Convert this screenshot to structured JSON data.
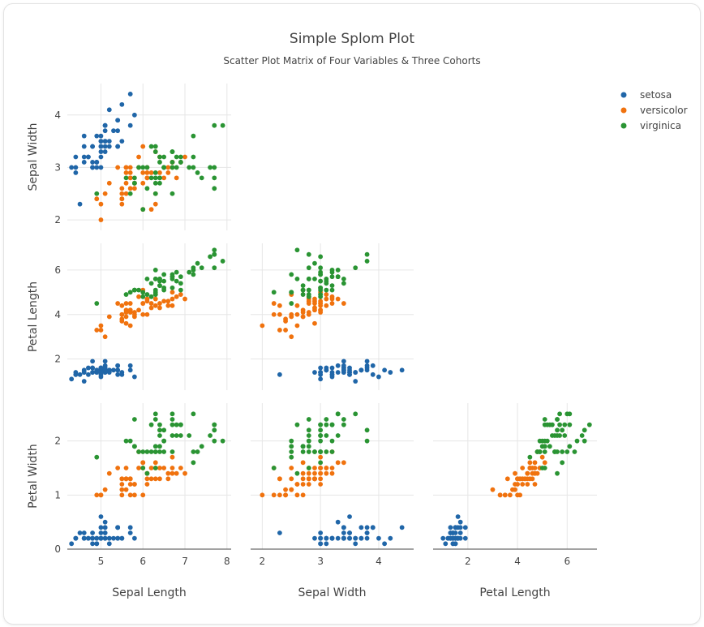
{
  "chart_data": {
    "type": "scatter",
    "title": "Simple Splom Plot",
    "subtitle": "Scatter Plot Matrix of Four Variables & Three Cohorts",
    "dimensions": [
      "Sepal Length",
      "Sepal Width",
      "Petal Length",
      "Petal Width"
    ],
    "row_dimensions": [
      "Sepal Width",
      "Petal Length",
      "Petal Width"
    ],
    "col_dimensions": [
      "Sepal Length",
      "Sepal Width",
      "Petal Length"
    ],
    "axes": {
      "Sepal Length": {
        "range": [
          4.2,
          8.1
        ],
        "ticks": [
          5,
          6,
          7,
          8
        ]
      },
      "Sepal Width": {
        "range": [
          1.8,
          4.6
        ],
        "ticks": [
          2,
          3,
          4
        ]
      },
      "Petal Length": {
        "range": [
          0.6,
          7.2
        ],
        "ticks": [
          2,
          4,
          6
        ]
      },
      "Petal Width": {
        "range": [
          0,
          2.7
        ],
        "ticks": [
          0,
          1,
          2
        ]
      }
    },
    "legend": {
      "position": "top-right"
    },
    "grid": true,
    "series": [
      {
        "name": "setosa",
        "color": "#2066a8",
        "points": [
          [
            5.1,
            3.5,
            1.4,
            0.2
          ],
          [
            4.9,
            3.0,
            1.4,
            0.2
          ],
          [
            4.7,
            3.2,
            1.3,
            0.2
          ],
          [
            4.6,
            3.1,
            1.5,
            0.2
          ],
          [
            5.0,
            3.6,
            1.4,
            0.2
          ],
          [
            5.4,
            3.9,
            1.7,
            0.4
          ],
          [
            4.6,
            3.4,
            1.4,
            0.3
          ],
          [
            5.0,
            3.4,
            1.5,
            0.2
          ],
          [
            4.4,
            2.9,
            1.4,
            0.2
          ],
          [
            4.9,
            3.1,
            1.5,
            0.1
          ],
          [
            5.4,
            3.7,
            1.5,
            0.2
          ],
          [
            4.8,
            3.4,
            1.6,
            0.2
          ],
          [
            4.8,
            3.0,
            1.4,
            0.1
          ],
          [
            4.3,
            3.0,
            1.1,
            0.1
          ],
          [
            5.8,
            4.0,
            1.2,
            0.2
          ],
          [
            5.7,
            4.4,
            1.5,
            0.4
          ],
          [
            5.4,
            3.9,
            1.3,
            0.4
          ],
          [
            5.1,
            3.5,
            1.4,
            0.3
          ],
          [
            5.7,
            3.8,
            1.7,
            0.3
          ],
          [
            5.1,
            3.8,
            1.5,
            0.3
          ],
          [
            5.4,
            3.4,
            1.7,
            0.2
          ],
          [
            5.1,
            3.7,
            1.5,
            0.4
          ],
          [
            4.6,
            3.6,
            1.0,
            0.2
          ],
          [
            5.1,
            3.3,
            1.7,
            0.5
          ],
          [
            4.8,
            3.4,
            1.9,
            0.2
          ],
          [
            5.0,
            3.0,
            1.6,
            0.2
          ],
          [
            5.0,
            3.4,
            1.6,
            0.4
          ],
          [
            5.2,
            3.5,
            1.5,
            0.2
          ],
          [
            5.2,
            3.4,
            1.4,
            0.2
          ],
          [
            4.7,
            3.2,
            1.6,
            0.2
          ],
          [
            4.8,
            3.1,
            1.6,
            0.2
          ],
          [
            5.4,
            3.4,
            1.5,
            0.4
          ],
          [
            5.2,
            4.1,
            1.5,
            0.1
          ],
          [
            5.5,
            4.2,
            1.4,
            0.2
          ],
          [
            4.9,
            3.1,
            1.5,
            0.2
          ],
          [
            5.0,
            3.2,
            1.2,
            0.2
          ],
          [
            5.5,
            3.5,
            1.3,
            0.2
          ],
          [
            4.9,
            3.6,
            1.4,
            0.1
          ],
          [
            4.4,
            3.0,
            1.3,
            0.2
          ],
          [
            5.1,
            3.4,
            1.5,
            0.2
          ],
          [
            5.0,
            3.5,
            1.3,
            0.3
          ],
          [
            4.5,
            2.3,
            1.3,
            0.3
          ],
          [
            4.4,
            3.2,
            1.3,
            0.2
          ],
          [
            5.0,
            3.5,
            1.6,
            0.6
          ],
          [
            5.1,
            3.8,
            1.9,
            0.4
          ],
          [
            4.8,
            3.0,
            1.4,
            0.3
          ],
          [
            5.1,
            3.8,
            1.6,
            0.2
          ],
          [
            4.6,
            3.2,
            1.4,
            0.2
          ],
          [
            5.3,
            3.7,
            1.5,
            0.2
          ],
          [
            5.0,
            3.3,
            1.4,
            0.2
          ]
        ]
      },
      {
        "name": "versicolor",
        "color": "#f0720e",
        "points": [
          [
            7.0,
            3.2,
            4.7,
            1.4
          ],
          [
            6.4,
            3.2,
            4.5,
            1.5
          ],
          [
            6.9,
            3.1,
            4.9,
            1.5
          ],
          [
            5.5,
            2.3,
            4.0,
            1.3
          ],
          [
            6.5,
            2.8,
            4.6,
            1.5
          ],
          [
            5.7,
            2.8,
            4.5,
            1.3
          ],
          [
            6.3,
            3.3,
            4.7,
            1.6
          ],
          [
            4.9,
            2.4,
            3.3,
            1.0
          ],
          [
            6.6,
            2.9,
            4.6,
            1.3
          ],
          [
            5.2,
            2.7,
            3.9,
            1.4
          ],
          [
            5.0,
            2.0,
            3.5,
            1.0
          ],
          [
            5.9,
            3.0,
            4.2,
            1.5
          ],
          [
            6.0,
            2.2,
            4.0,
            1.0
          ],
          [
            6.1,
            2.9,
            4.7,
            1.4
          ],
          [
            5.6,
            2.9,
            3.6,
            1.3
          ],
          [
            6.7,
            3.1,
            4.4,
            1.4
          ],
          [
            5.6,
            3.0,
            4.5,
            1.5
          ],
          [
            5.8,
            2.7,
            4.1,
            1.0
          ],
          [
            6.2,
            2.2,
            4.5,
            1.5
          ],
          [
            5.6,
            2.5,
            3.9,
            1.1
          ],
          [
            5.9,
            3.2,
            4.8,
            1.8
          ],
          [
            6.1,
            2.8,
            4.0,
            1.3
          ],
          [
            6.3,
            2.5,
            4.9,
            1.5
          ],
          [
            6.1,
            2.8,
            4.7,
            1.2
          ],
          [
            6.4,
            2.9,
            4.3,
            1.3
          ],
          [
            6.6,
            3.0,
            4.4,
            1.4
          ],
          [
            6.8,
            2.8,
            4.8,
            1.4
          ],
          [
            6.7,
            3.0,
            5.0,
            1.7
          ],
          [
            6.0,
            2.9,
            4.5,
            1.5
          ],
          [
            5.7,
            2.6,
            3.5,
            1.0
          ],
          [
            5.5,
            2.4,
            3.8,
            1.1
          ],
          [
            5.5,
            2.4,
            3.7,
            1.0
          ],
          [
            5.8,
            2.7,
            3.9,
            1.2
          ],
          [
            6.0,
            2.7,
            5.1,
            1.6
          ],
          [
            5.4,
            3.0,
            4.5,
            1.5
          ],
          [
            6.0,
            3.4,
            4.5,
            1.6
          ],
          [
            6.7,
            3.1,
            4.7,
            1.5
          ],
          [
            6.3,
            2.3,
            4.4,
            1.3
          ],
          [
            5.6,
            3.0,
            4.1,
            1.3
          ],
          [
            5.5,
            2.5,
            4.0,
            1.3
          ],
          [
            5.5,
            2.6,
            4.4,
            1.2
          ],
          [
            6.1,
            3.0,
            4.6,
            1.4
          ],
          [
            5.8,
            2.6,
            4.0,
            1.2
          ],
          [
            5.0,
            2.3,
            3.3,
            1.0
          ],
          [
            5.6,
            2.7,
            4.2,
            1.3
          ],
          [
            5.7,
            3.0,
            4.2,
            1.2
          ],
          [
            5.7,
            2.9,
            4.2,
            1.3
          ],
          [
            6.2,
            2.9,
            4.3,
            1.3
          ],
          [
            5.1,
            2.5,
            3.0,
            1.1
          ],
          [
            5.7,
            2.8,
            4.1,
            1.3
          ]
        ]
      },
      {
        "name": "virginica",
        "color": "#2a9433",
        "points": [
          [
            6.3,
            3.3,
            6.0,
            2.5
          ],
          [
            5.8,
            2.7,
            5.1,
            1.9
          ],
          [
            7.1,
            3.0,
            5.9,
            2.1
          ],
          [
            6.3,
            2.9,
            5.6,
            1.8
          ],
          [
            6.5,
            3.0,
            5.8,
            2.2
          ],
          [
            7.6,
            3.0,
            6.6,
            2.1
          ],
          [
            4.9,
            2.5,
            4.5,
            1.7
          ],
          [
            7.3,
            2.9,
            6.3,
            1.8
          ],
          [
            6.7,
            2.5,
            5.8,
            1.8
          ],
          [
            7.2,
            3.6,
            6.1,
            2.5
          ],
          [
            6.5,
            3.2,
            5.1,
            2.0
          ],
          [
            6.4,
            2.7,
            5.3,
            1.9
          ],
          [
            6.8,
            3.0,
            5.5,
            2.1
          ],
          [
            5.7,
            2.5,
            5.0,
            2.0
          ],
          [
            5.8,
            2.8,
            5.1,
            2.4
          ],
          [
            6.4,
            3.2,
            5.3,
            2.3
          ],
          [
            6.5,
            3.0,
            5.5,
            1.8
          ],
          [
            7.7,
            3.8,
            6.7,
            2.2
          ],
          [
            7.7,
            2.6,
            6.9,
            2.3
          ],
          [
            6.0,
            2.2,
            5.0,
            1.5
          ],
          [
            6.9,
            3.2,
            5.7,
            2.3
          ],
          [
            5.6,
            2.8,
            4.9,
            2.0
          ],
          [
            7.7,
            2.8,
            6.7,
            2.0
          ],
          [
            6.3,
            2.7,
            4.9,
            1.8
          ],
          [
            6.7,
            3.3,
            5.7,
            2.1
          ],
          [
            7.2,
            3.2,
            6.0,
            1.8
          ],
          [
            6.2,
            2.8,
            4.8,
            1.8
          ],
          [
            6.1,
            3.0,
            4.9,
            1.8
          ],
          [
            6.4,
            2.8,
            5.6,
            2.1
          ],
          [
            7.2,
            3.0,
            5.8,
            1.6
          ],
          [
            7.4,
            2.8,
            6.1,
            1.9
          ],
          [
            7.9,
            3.8,
            6.4,
            2.0
          ],
          [
            6.4,
            2.8,
            5.6,
            2.2
          ],
          [
            6.3,
            2.8,
            5.1,
            1.5
          ],
          [
            6.1,
            2.6,
            5.6,
            1.4
          ],
          [
            7.7,
            3.0,
            6.1,
            2.3
          ],
          [
            6.3,
            3.4,
            5.6,
            2.4
          ],
          [
            6.4,
            3.1,
            5.5,
            1.8
          ],
          [
            6.0,
            3.0,
            4.8,
            1.8
          ],
          [
            6.9,
            3.1,
            5.4,
            2.1
          ],
          [
            6.7,
            3.1,
            5.6,
            2.4
          ],
          [
            6.9,
            3.1,
            5.1,
            2.3
          ],
          [
            5.8,
            2.7,
            5.1,
            1.9
          ],
          [
            6.8,
            3.2,
            5.9,
            2.3
          ],
          [
            6.7,
            3.3,
            5.7,
            2.5
          ],
          [
            6.7,
            3.0,
            5.2,
            2.3
          ],
          [
            6.3,
            2.5,
            5.0,
            1.9
          ],
          [
            6.5,
            3.0,
            5.2,
            2.0
          ],
          [
            6.2,
            3.4,
            5.4,
            2.3
          ],
          [
            5.9,
            3.0,
            5.1,
            1.8
          ]
        ]
      }
    ]
  }
}
